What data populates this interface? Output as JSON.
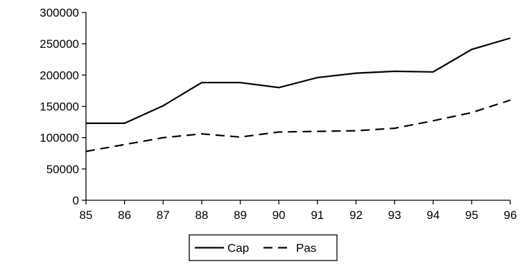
{
  "chart_data": {
    "type": "line",
    "title": "",
    "xlabel": "",
    "ylabel": "",
    "categories": [
      "85",
      "86",
      "87",
      "88",
      "89",
      "90",
      "91",
      "92",
      "93",
      "94",
      "95",
      "96"
    ],
    "ylim": [
      0,
      300000
    ],
    "yticks": [
      0,
      50000,
      100000,
      150000,
      200000,
      250000,
      300000
    ],
    "grid": false,
    "legend": "bottom",
    "series": [
      {
        "name": "Cap",
        "style": "solid",
        "color": "#000000",
        "values": [
          123000,
          123000,
          151000,
          188000,
          188000,
          180000,
          196000,
          203000,
          206000,
          205000,
          241000,
          259000
        ]
      },
      {
        "name": "Pas",
        "style": "dashed",
        "color": "#000000",
        "values": [
          78000,
          89000,
          100000,
          106000,
          101000,
          109000,
          110000,
          111000,
          115000,
          127000,
          140000,
          160000
        ]
      }
    ]
  }
}
